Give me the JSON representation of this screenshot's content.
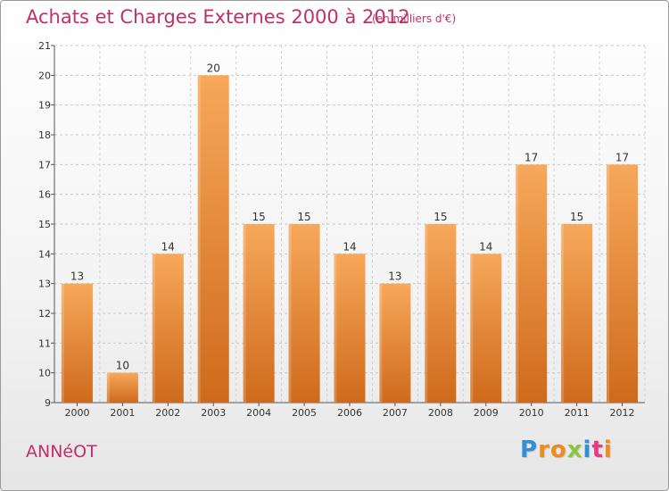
{
  "chart_data": {
    "type": "bar",
    "title": "Achats et Charges Externes 2000 à 2012",
    "subtitle": "(en milliers d'€)",
    "categories": [
      "2000",
      "2001",
      "2002",
      "2003",
      "2004",
      "2005",
      "2006",
      "2007",
      "2008",
      "2009",
      "2010",
      "2011",
      "2012"
    ],
    "values": [
      13,
      10,
      14,
      20,
      15,
      15,
      14,
      13,
      15,
      14,
      17,
      15,
      17
    ],
    "ylim": [
      9,
      21
    ],
    "yticks": [
      9,
      10,
      11,
      12,
      13,
      14,
      15,
      16,
      17,
      18,
      19,
      20,
      21
    ],
    "grid": true,
    "bar_color_top": "#f7a85a",
    "bar_color_bottom": "#cf6a1c"
  },
  "place_name": "ANNéOT",
  "logo": {
    "letters": [
      "P",
      "r",
      "o",
      "x",
      "i",
      "t",
      "i"
    ],
    "colors": [
      "#2f8fd8",
      "#f08a1c",
      "#f08a1c",
      "#8cc63f",
      "#2f8fd8",
      "#e63a87",
      "#f08a1c"
    ]
  }
}
